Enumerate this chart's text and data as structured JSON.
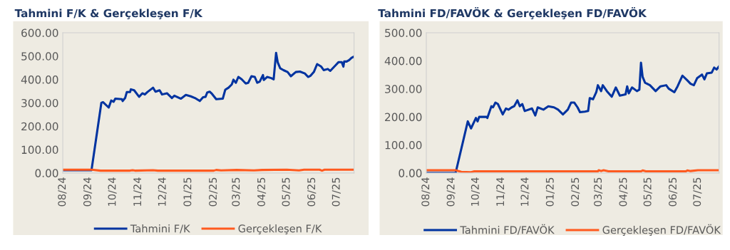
{
  "chart_data": [
    {
      "type": "line",
      "title": "Tahmini F/K & Gerçekleşen F/K",
      "legend": "bottom",
      "xlim": [
        "2024-08-01",
        "2025-07-22"
      ],
      "ylim": [
        0,
        600
      ],
      "xticks": [
        {
          "value": "2024-08-01",
          "label": "08/24"
        },
        {
          "value": "2024-09-01",
          "label": "09/24"
        },
        {
          "value": "2024-10-01",
          "label": "10/24"
        },
        {
          "value": "2024-11-01",
          "label": "11/24"
        },
        {
          "value": "2024-12-01",
          "label": "12/24"
        },
        {
          "value": "2025-01-01",
          "label": "01/25"
        },
        {
          "value": "2025-02-01",
          "label": "02/25"
        },
        {
          "value": "2025-03-01",
          "label": "03/25"
        },
        {
          "value": "2025-04-01",
          "label": "04/25"
        },
        {
          "value": "2025-05-01",
          "label": "05/25"
        },
        {
          "value": "2025-06-01",
          "label": "06/25"
        },
        {
          "value": "2025-07-01",
          "label": "07/25"
        }
      ],
      "yticks": [
        {
          "value": 0,
          "label": "0.00"
        },
        {
          "value": 100,
          "label": "100.00"
        },
        {
          "value": 200,
          "label": "200.00"
        },
        {
          "value": 300,
          "label": "300.00"
        },
        {
          "value": 400,
          "label": "400.00"
        },
        {
          "value": 500,
          "label": "500.00"
        },
        {
          "value": 600,
          "label": "600.00"
        }
      ],
      "series": [
        {
          "name": "Tahmini F/K",
          "color": "#0033a0",
          "x": [
            "2024-08-01",
            "2024-09-05",
            "2024-09-17",
            "2024-09-19",
            "2024-09-26",
            "2024-09-29",
            "2024-10-02",
            "2024-10-04",
            "2024-10-12",
            "2024-10-13",
            "2024-10-16",
            "2024-10-18",
            "2024-10-22",
            "2024-10-23",
            "2024-10-27",
            "2024-11-02",
            "2024-11-06",
            "2024-11-09",
            "2024-11-12",
            "2024-11-19",
            "2024-11-22",
            "2024-11-27",
            "2024-11-30",
            "2024-12-06",
            "2024-12-12",
            "2024-12-15",
            "2024-12-23",
            "2024-12-29",
            "2025-01-04",
            "2025-01-09",
            "2025-01-15",
            "2025-01-19",
            "2025-01-22",
            "2025-01-24",
            "2025-01-27",
            "2025-01-30",
            "2025-02-04",
            "2025-02-12",
            "2025-02-15",
            "2025-02-19",
            "2025-02-23",
            "2025-02-25",
            "2025-02-28",
            "2025-03-03",
            "2025-03-07",
            "2025-03-12",
            "2025-03-15",
            "2025-03-19",
            "2025-03-23",
            "2025-03-26",
            "2025-03-29",
            "2025-04-02",
            "2025-04-03",
            "2025-04-07",
            "2025-04-12",
            "2025-04-15",
            "2025-04-18",
            "2025-04-20",
            "2025-04-23",
            "2025-04-27",
            "2025-05-02",
            "2025-05-06",
            "2025-05-12",
            "2025-05-17",
            "2025-05-23",
            "2025-05-27",
            "2025-05-30",
            "2025-06-03",
            "2025-06-07",
            "2025-06-12",
            "2025-06-15",
            "2025-06-20",
            "2025-06-23",
            "2025-06-29",
            "2025-07-03",
            "2025-07-07",
            "2025-07-09",
            "2025-07-10",
            "2025-07-13",
            "2025-07-16",
            "2025-07-19",
            "2025-07-22"
          ],
          "values": [
            12,
            12,
            300,
            303,
            280,
            310,
            305,
            318,
            316,
            308,
            321,
            346,
            346,
            358,
            354,
            326,
            341,
            336,
            346,
            365,
            348,
            354,
            336,
            341,
            321,
            331,
            318,
            334,
            328,
            321,
            308,
            324,
            326,
            344,
            348,
            338,
            316,
            318,
            356,
            365,
            379,
            399,
            386,
            411,
            401,
            383,
            386,
            414,
            411,
            386,
            391,
            419,
            398,
            411,
            406,
            401,
            514,
            473,
            448,
            440,
            432,
            414,
            432,
            434,
            426,
            411,
            416,
            432,
            466,
            455,
            440,
            445,
            437,
            459,
            474,
            474,
            455,
            477,
            477,
            483,
            493,
            498
          ]
        },
        {
          "name": "Gerçekleşen F/K",
          "color": "#ff5a1f",
          "x": [
            "2024-08-01",
            "2024-09-05",
            "2024-09-16",
            "2024-10-22",
            "2024-10-25",
            "2024-10-28",
            "2024-11-19",
            "2024-11-25",
            "2025-02-01",
            "2025-02-04",
            "2025-02-10",
            "2025-03-01",
            "2025-03-22",
            "2025-04-01",
            "2025-05-01",
            "2025-05-16",
            "2025-05-22",
            "2025-06-10",
            "2025-06-13",
            "2025-06-16",
            "2025-07-22"
          ],
          "values": [
            14,
            14,
            10,
            10,
            12,
            10,
            12,
            10,
            10,
            13,
            11,
            13,
            11,
            13,
            14,
            11,
            14,
            14,
            10,
            14,
            14
          ]
        }
      ]
    },
    {
      "type": "line",
      "title": "Tahmini FD/FAVÖK & Gerçekleşen FD/FAVÖK",
      "legend": "bottom",
      "xlim": [
        "2024-08-01",
        "2025-07-27"
      ],
      "ylim": [
        0,
        500
      ],
      "xticks": [
        {
          "value": "2024-08-01",
          "label": "08/24"
        },
        {
          "value": "2024-09-01",
          "label": "09/24"
        },
        {
          "value": "2024-10-01",
          "label": "10/24"
        },
        {
          "value": "2024-11-01",
          "label": "11/24"
        },
        {
          "value": "2024-12-01",
          "label": "12/24"
        },
        {
          "value": "2025-01-01",
          "label": "01/25"
        },
        {
          "value": "2025-02-01",
          "label": "02/25"
        },
        {
          "value": "2025-03-01",
          "label": "03/25"
        },
        {
          "value": "2025-04-01",
          "label": "04/25"
        },
        {
          "value": "2025-05-01",
          "label": "05/25"
        },
        {
          "value": "2025-06-01",
          "label": "06/25"
        },
        {
          "value": "2025-07-01",
          "label": "07/25"
        }
      ],
      "yticks": [
        {
          "value": 0,
          "label": "0.00"
        },
        {
          "value": 100,
          "label": "100.00"
        },
        {
          "value": 200,
          "label": "200.00"
        },
        {
          "value": 300,
          "label": "300.00"
        },
        {
          "value": 400,
          "label": "400.00"
        },
        {
          "value": 500,
          "label": "500.00"
        }
      ],
      "series": [
        {
          "name": "Tahmini FD/FAVÖK",
          "color": "#0033a0",
          "x": [
            "2024-08-01",
            "2024-09-06",
            "2024-09-21",
            "2024-09-25",
            "2024-10-01",
            "2024-10-03",
            "2024-10-05",
            "2024-10-08",
            "2024-10-14",
            "2024-10-15",
            "2024-10-20",
            "2024-10-22",
            "2024-10-25",
            "2024-10-28",
            "2024-11-03",
            "2024-11-07",
            "2024-11-10",
            "2024-11-14",
            "2024-11-17",
            "2024-11-21",
            "2024-11-24",
            "2024-11-27",
            "2024-11-30",
            "2024-12-09",
            "2024-12-13",
            "2024-12-16",
            "2024-12-23",
            "2024-12-29",
            "2025-01-05",
            "2025-01-10",
            "2025-01-16",
            "2025-01-22",
            "2025-01-26",
            "2025-01-30",
            "2025-02-03",
            "2025-02-06",
            "2025-02-12",
            "2025-02-16",
            "2025-02-18",
            "2025-02-22",
            "2025-02-26",
            "2025-02-28",
            "2025-03-04",
            "2025-03-06",
            "2025-03-11",
            "2025-03-17",
            "2025-03-22",
            "2025-03-27",
            "2025-04-03",
            "2025-04-05",
            "2025-04-07",
            "2025-04-11",
            "2025-04-17",
            "2025-04-20",
            "2025-04-22",
            "2025-04-24",
            "2025-04-27",
            "2025-05-03",
            "2025-05-10",
            "2025-05-16",
            "2025-05-23",
            "2025-05-26",
            "2025-06-02",
            "2025-06-06",
            "2025-06-12",
            "2025-06-18",
            "2025-06-22",
            "2025-06-26",
            "2025-06-30",
            "2025-07-06",
            "2025-07-09",
            "2025-07-12",
            "2025-07-18",
            "2025-07-21",
            "2025-07-24",
            "2025-07-27"
          ],
          "values": [
            0,
            0,
            184,
            159,
            196,
            184,
            200,
            200,
            200,
            196,
            238,
            234,
            251,
            246,
            209,
            230,
            226,
            234,
            238,
            259,
            238,
            246,
            221,
            230,
            205,
            234,
            226,
            238,
            234,
            226,
            209,
            226,
            251,
            251,
            234,
            217,
            219,
            221,
            267,
            263,
            288,
            313,
            292,
            313,
            292,
            272,
            305,
            276,
            280,
            309,
            284,
            305,
            292,
            297,
            393,
            343,
            322,
            313,
            292,
            309,
            313,
            301,
            288,
            309,
            347,
            330,
            318,
            313,
            338,
            351,
            334,
            355,
            358,
            376,
            369,
            380
          ]
        },
        {
          "name": "Gerçekleşen FD/FAVÖK",
          "color": "#ff5a1f",
          "x": [
            "2024-08-01",
            "2024-09-06",
            "2024-09-13",
            "2024-09-25",
            "2024-09-29",
            "2025-02-28",
            "2025-03-01",
            "2025-03-04",
            "2025-03-07",
            "2025-03-13",
            "2025-04-22",
            "2025-04-24",
            "2025-04-28",
            "2025-06-16",
            "2025-06-18",
            "2025-06-22",
            "2025-07-01",
            "2025-07-27"
          ],
          "values": [
            10,
            10,
            4,
            3,
            6,
            6,
            10,
            7,
            10,
            6,
            6,
            9,
            6,
            6,
            9,
            7,
            10,
            10
          ]
        }
      ]
    }
  ]
}
